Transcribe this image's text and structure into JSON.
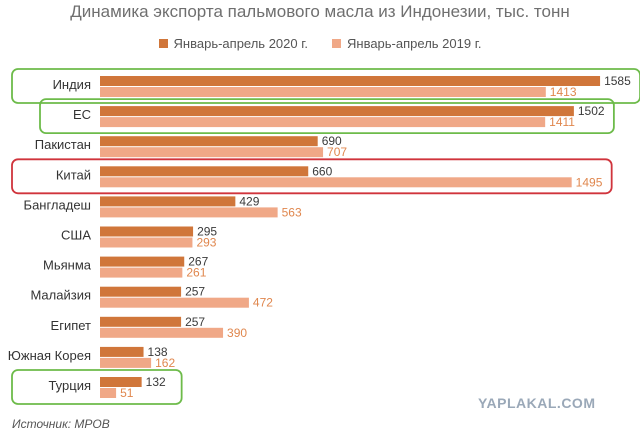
{
  "colors": {
    "series2020": "#d0763a",
    "series2019": "#f0a887",
    "green_frame": "#6dbb4a",
    "red_frame": "#d0343c",
    "label2020": "#3a3a3a",
    "label2019": "#e0874e"
  },
  "source": "Источник: МРОВ",
  "watermark": "YAPLAKAL.COM",
  "chart_data": {
    "type": "bar",
    "orientation": "horizontal",
    "title": "Динамика экспорта пальмового масла из Индонезии, тыс. тонн",
    "categories": [
      "Индия",
      "ЕС",
      "Пакистан",
      "Китай",
      "Бангладеш",
      "США",
      "Мьянма",
      "Малайзия",
      "Египет",
      "Южная Корея",
      "Турция"
    ],
    "series": [
      {
        "name": "Январь-апрель 2020 г.",
        "values": [
          1585,
          1502,
          690,
          660,
          429,
          295,
          267,
          257,
          257,
          138,
          132
        ]
      },
      {
        "name": "Январь-апрель 2019 г.",
        "values": [
          1413,
          1411,
          707,
          1495,
          563,
          293,
          261,
          472,
          390,
          162,
          51
        ]
      }
    ],
    "highlights": [
      {
        "category": "Индия",
        "color": "green"
      },
      {
        "category": "ЕС",
        "color": "green"
      },
      {
        "category": "Китай",
        "color": "red"
      },
      {
        "category": "Турция",
        "color": "green"
      }
    ],
    "legend_position": "top",
    "grid": false
  }
}
